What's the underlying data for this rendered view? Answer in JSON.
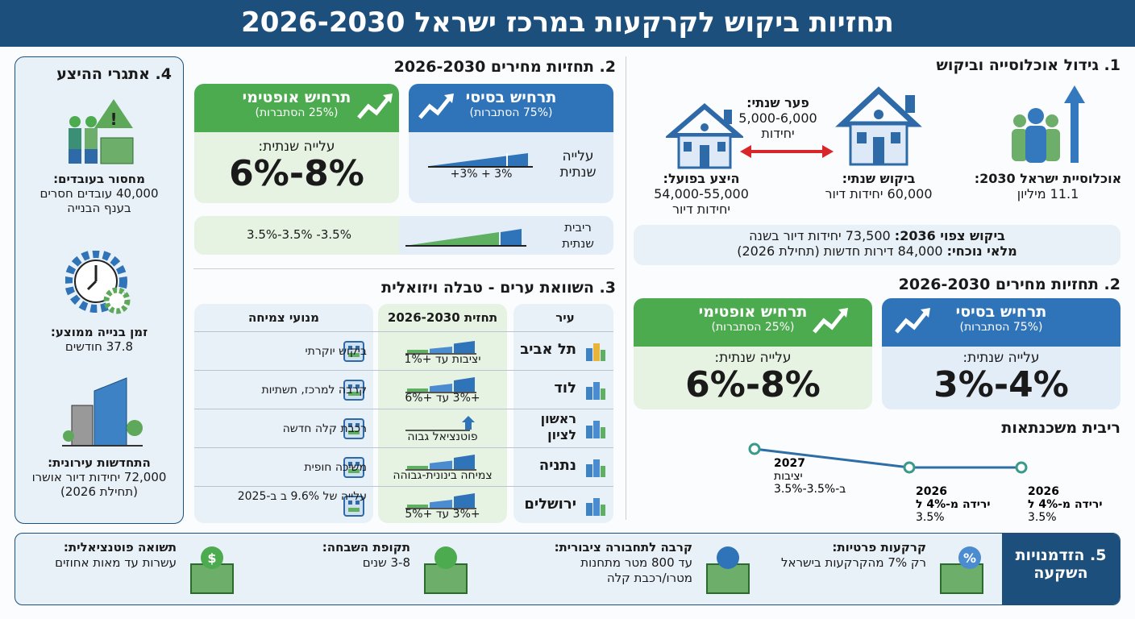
{
  "title": "תחזיות ביקוש לקרקעות במרכז ישראל 2026-2030",
  "section1": {
    "heading": "1. גידול אוכלוסייה וביקוש",
    "population": {
      "label": "אוכלוסיית ישראל 2030:",
      "value": "11.1 מיליון",
      "icon": "people-growth-icon"
    },
    "demand": {
      "label": "ביקוש שנתי:",
      "value": "60,000 יחידות דיור",
      "icon": "house-icon"
    },
    "gap": {
      "label": "פער שנתי:",
      "value": "5,000-6,000",
      "unit": "יחידות"
    },
    "supply": {
      "label": "היצע בפועל:",
      "value": "54,000-55,000",
      "unit": "יחידות דיור",
      "icon": "house-icon"
    },
    "summary": {
      "line1_bold": "ביקוש צפוי 2036:",
      "line1": "73,500 יחידות דיור בשנה",
      "line2_bold": "מלאי נוכחי:",
      "line2": "84,000 דירות חדשות (תחילת 2026)"
    }
  },
  "section2_mid": {
    "heading": "2. תחזיות מחירים 2026-2030",
    "basic": {
      "title": "תרחיש בסיסי",
      "prob": "(75% הסתברות)",
      "label": "עלייה שנתית",
      "bar_label": "+3% + 3%"
    },
    "optimistic": {
      "title": "תרחיש אופטימי",
      "prob": "(25% הסתברות)",
      "label": "עלייה שנתית:",
      "value": "6%-8%"
    },
    "interest": {
      "label": "ריבית שנתית",
      "value": "3.5%-3.5% -3.5%"
    }
  },
  "section3": {
    "heading": "3. השוואת ערים - טבלה ויזואלית",
    "columns": [
      "עיר",
      "תחזית 2026-2030",
      "מנועי צמיחה"
    ],
    "rows": [
      {
        "city": "תל אביב",
        "forecast": "יציבות עד +1%",
        "driver": "ביקוש יוקרתי",
        "city_icon": "skyline-icon",
        "driver_icon": "office-building-icon"
      },
      {
        "city": "לוד",
        "forecast": "+3% עד +6%",
        "driver": "קרבה למרכז, תשתיות",
        "city_icon": "growth-houses-icon",
        "driver_icon": "highway-icon"
      },
      {
        "city": "ראשון לציון",
        "forecast": "פוטנציאל גבוה",
        "driver": "רכבת קלה חדשה",
        "city_icon": "stars-trend-icon",
        "driver_icon": "light-rail-icon"
      },
      {
        "city": "נתניה",
        "forecast": "צמיחה בינונית-גבוהה",
        "driver": "משיכה חופית",
        "city_icon": "coastal-city-icon",
        "driver_icon": "beach-icon"
      },
      {
        "city": "ירושלים",
        "forecast": "+3% עד +5%",
        "driver": "עלייה של 9.6% ב ב-2025",
        "city_icon": "jerusalem-icon",
        "driver_icon": "bar-chart-icon"
      }
    ]
  },
  "section4": {
    "heading": "4. אתגרי ההיצע",
    "items": [
      {
        "label": "מחסור בעובדים:",
        "value": "40,000 עובדים חסרים בענף הבנייה",
        "icon": "workers-warning-icon"
      },
      {
        "label": "זמן בנייה ממוצע:",
        "value": "37.8 חודשים",
        "icon": "clock-gear-icon"
      },
      {
        "label": "התחדשות עירונית:",
        "value": "72,000 יחידות דיור אושרו (תחילת 2026)",
        "icon": "buildings-icon"
      }
    ]
  },
  "section2_right": {
    "heading": "2. תחזיות מחירים 2026-2030",
    "basic": {
      "title": "תרחיש בסיסי",
      "prob": "(75% הסתברות)",
      "label": "עלייה שנתית:",
      "value": "3%-4%"
    },
    "optimistic": {
      "title": "תרחיש אופטימי",
      "prob": "(25% הסתברות)",
      "label": "עלייה שנתית:",
      "value": "6%-8%"
    },
    "mortgage": {
      "heading": "ריבית משכנתאות",
      "points": [
        {
          "year": "2026",
          "text": "ירידה מ-4% ל",
          "value": "3.5%"
        },
        {
          "year": "2026",
          "text": "ירידה מ-4% ל",
          "value": "3.5%"
        },
        {
          "year": "2027",
          "text": "יציבות",
          "value": "ב-3.5%-3.5%"
        }
      ]
    }
  },
  "section5": {
    "heading": "5. הזדמנויות השקעה",
    "items": [
      {
        "label": "קרקעות פרטיות:",
        "value": "רק 7% מהקרקעות בישראל",
        "icon": "land-percent-icon"
      },
      {
        "label": "קרבה לתחבורה ציבורית:",
        "value": "עד 800 מטר מתחנות מטרו/רכבת קלה",
        "icon": "trains-icon"
      },
      {
        "label": "תקופת השבחה:",
        "value": "3-8 שנים",
        "icon": "plant-calendar-icon"
      },
      {
        "label": "תשואה פוטנציאלית:",
        "value": "עשרות עד מאות אחוזים",
        "icon": "money-growth-icon"
      }
    ]
  },
  "colors": {
    "navy": "#1c4f7c",
    "blue": "#2f73b8",
    "green": "#4caa4f",
    "red": "#d9262b"
  }
}
